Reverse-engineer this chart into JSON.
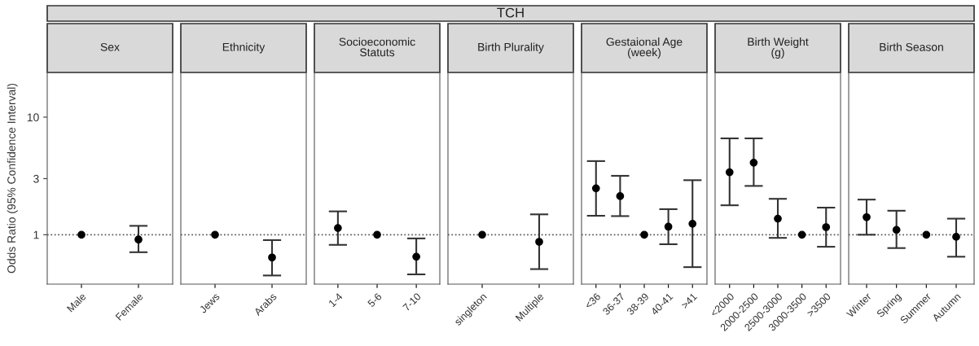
{
  "chart_data": [
    {
      "type": "scatter",
      "title": "Sex",
      "ylabel": "Odds Ratio (95% Confidence Interval)",
      "annotations": [
        "TCH"
      ],
      "categories": [
        "Male",
        "Female"
      ],
      "series": [
        {
          "color": "#000000",
          "values": [
            1,
            0.91
          ],
          "errors": [
            null,
            [
              0.71,
              1.19
            ]
          ]
        }
      ],
      "ylim": [
        0.38,
        24
      ],
      "yticks": [
        1,
        3,
        10
      ],
      "log": true,
      "marker": "circle",
      "grid": false,
      "ref_lines": [
        {
          "axis": "y",
          "value": 1,
          "line_style": "dotted",
          "color": "#555555"
        }
      ]
    },
    {
      "type": "scatter",
      "title": "Ethnicity",
      "categories": [
        "Jews",
        "Arabs"
      ],
      "series": [
        {
          "color": "#000000",
          "values": [
            1,
            0.64
          ],
          "errors": [
            null,
            [
              0.45,
              0.9
            ]
          ]
        }
      ],
      "ylim": [
        0.38,
        24
      ],
      "yticks": [
        1,
        3,
        10
      ],
      "log": true,
      "marker": "circle",
      "grid": false,
      "tick_labels": "x",
      "ref_lines": [
        {
          "axis": "y",
          "value": 1,
          "line_style": "dotted",
          "color": "#555555"
        }
      ]
    },
    {
      "type": "scatter",
      "title": "Socioeconomic\nStatuts",
      "categories": [
        "1-4",
        "5-6",
        "7-10"
      ],
      "series": [
        {
          "color": "#000000",
          "values": [
            1.14,
            1,
            0.65
          ],
          "errors": [
            [
              0.82,
              1.58
            ],
            null,
            [
              0.46,
              0.93
            ]
          ]
        }
      ],
      "ylim": [
        0.38,
        24
      ],
      "yticks": [
        1,
        3,
        10
      ],
      "log": true,
      "marker": "circle",
      "grid": false,
      "tick_labels": "x",
      "ref_lines": [
        {
          "axis": "y",
          "value": 1,
          "line_style": "dotted",
          "color": "#555555"
        }
      ]
    },
    {
      "type": "scatter",
      "title": "Birth Plurality",
      "categories": [
        "singleton",
        "Multiple"
      ],
      "series": [
        {
          "color": "#000000",
          "values": [
            1,
            0.87
          ],
          "errors": [
            null,
            [
              0.51,
              1.49
            ]
          ]
        }
      ],
      "ylim": [
        0.38,
        24
      ],
      "yticks": [
        1,
        3,
        10
      ],
      "log": true,
      "marker": "circle",
      "grid": false,
      "tick_labels": "x",
      "ref_lines": [
        {
          "axis": "y",
          "value": 1,
          "line_style": "dotted",
          "color": "#555555"
        }
      ]
    },
    {
      "type": "scatter",
      "title": "Gestaional Age\n(week)",
      "categories": [
        "<36",
        "36-37",
        "38-39",
        "40-41",
        ">41"
      ],
      "series": [
        {
          "color": "#000000",
          "values": [
            2.48,
            2.13,
            1,
            1.17,
            1.24
          ],
          "errors": [
            [
              1.45,
              4.23
            ],
            [
              1.44,
              3.17
            ],
            null,
            [
              0.83,
              1.65
            ],
            [
              0.53,
              2.91
            ]
          ]
        }
      ],
      "ylim": [
        0.38,
        24
      ],
      "yticks": [
        1,
        3,
        10
      ],
      "log": true,
      "marker": "circle",
      "grid": false,
      "tick_labels": "x",
      "ref_lines": [
        {
          "axis": "y",
          "value": 1,
          "line_style": "dotted",
          "color": "#555555"
        }
      ]
    },
    {
      "type": "scatter",
      "title": "Birth Weight\n(g)",
      "categories": [
        "<2000",
        "2000-2500",
        "2500-3000",
        "3000-3500",
        ">3500"
      ],
      "series": [
        {
          "color": "#000000",
          "values": [
            3.4,
            4.1,
            1.37,
            1,
            1.16
          ],
          "errors": [
            [
              1.78,
              6.6
            ],
            [
              2.6,
              6.6
            ],
            [
              0.94,
              2.02
            ],
            null,
            [
              0.79,
              1.7
            ]
          ]
        }
      ],
      "ylim": [
        0.38,
        24
      ],
      "yticks": [
        1,
        3,
        10
      ],
      "log": true,
      "marker": "circle",
      "grid": false,
      "tick_labels": "x",
      "ref_lines": [
        {
          "axis": "y",
          "value": 1,
          "line_style": "dotted",
          "color": "#555555"
        }
      ]
    },
    {
      "type": "scatter",
      "title": "Birth Season",
      "categories": [
        "Winter",
        "Spring",
        "Summer",
        "Autumn"
      ],
      "series": [
        {
          "color": "#000000",
          "values": [
            1.41,
            1.1,
            1,
            0.96
          ],
          "errors": [
            [
              1.0,
              1.99
            ],
            [
              0.77,
              1.6
            ],
            null,
            [
              0.65,
              1.37
            ]
          ]
        }
      ],
      "ylim": [
        0.38,
        24
      ],
      "yticks": [
        1,
        3,
        10
      ],
      "log": true,
      "marker": "circle",
      "grid": false,
      "tick_labels": "x",
      "ref_lines": [
        {
          "axis": "y",
          "value": 1,
          "line_style": "dotted",
          "color": "#555555"
        }
      ]
    }
  ]
}
